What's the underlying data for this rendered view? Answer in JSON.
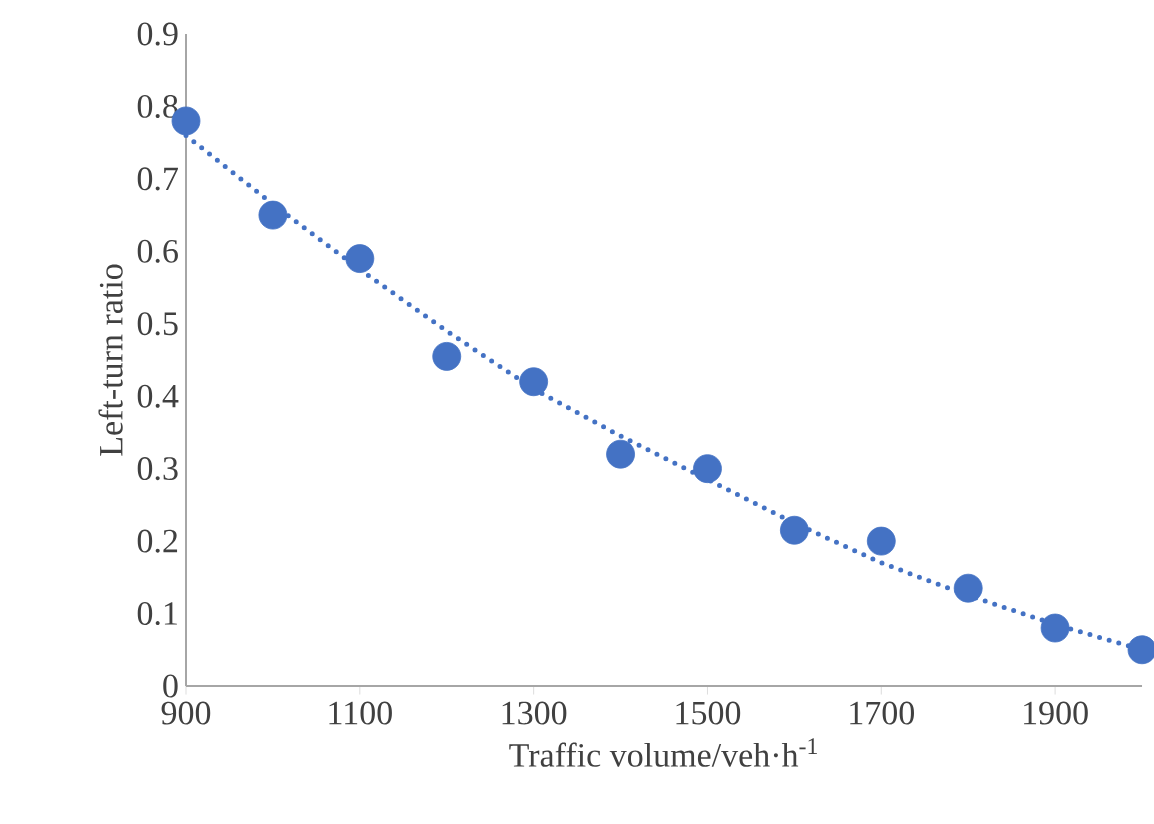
{
  "chart_data": {
    "type": "scatter",
    "xlabel": "Traffic volume/veh·h$^{-1}$",
    "ylabel": "Left-turn ratio",
    "x": [
      900,
      1000,
      1100,
      1200,
      1300,
      1400,
      1500,
      1600,
      1700,
      1800,
      1900,
      2000
    ],
    "series": [
      {
        "color": "#4472c4",
        "marker": "circle",
        "values": [
          0.78,
          0.65,
          0.59,
          0.455,
          0.42,
          0.32,
          0.3,
          0.215,
          0.2,
          0.135,
          0.08,
          0.05
        ]
      },
      {
        "type": "line",
        "color": "#4472c4",
        "marker": "none",
        "line_style": "dotted",
        "values": [
          0.76,
          0.665,
          0.575,
          0.49,
          0.41,
          0.345,
          0.285,
          0.225,
          0.17,
          0.125,
          0.085,
          0.05
        ]
      }
    ],
    "xlim": [
      900,
      2000
    ],
    "ylim": [
      0,
      0.9
    ],
    "xticks": [
      900,
      1100,
      1300,
      1500,
      1700,
      1900
    ],
    "yticks": [
      0,
      0.1,
      0.2,
      0.3,
      0.4,
      0.5,
      0.6,
      0.7,
      0.8,
      0.9
    ],
    "grid": false
  }
}
